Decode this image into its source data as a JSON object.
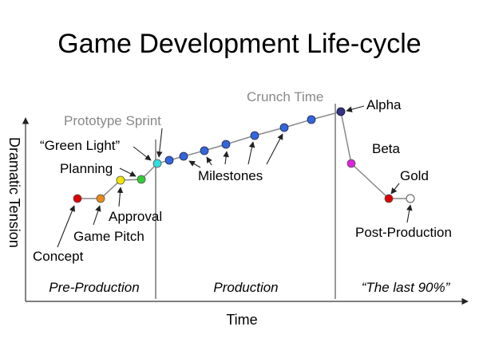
{
  "title": "Game Development Life-cycle",
  "axes": {
    "y_label": "Dramatic Tension",
    "x_label": "Time"
  },
  "phases": {
    "pre_production": "Pre-Production",
    "production": "Production",
    "last_90": "“The last 90%”"
  },
  "labels": {
    "concept": "Concept",
    "game_pitch": "Game Pitch",
    "approval": "Approval",
    "planning": "Planning",
    "green_light": "“Green Light”",
    "prototype_sprint": "Prototype Sprint",
    "milestones": "Milestones",
    "crunch_time": "Crunch Time",
    "alpha": "Alpha",
    "beta": "Beta",
    "gold": "Gold",
    "post_production": "Post-Production"
  },
  "colors": {
    "concept": "#dd0000",
    "game_pitch": "#e88a1a",
    "approval": "#f2e600",
    "planning": "#33cc33",
    "green_light": "#33dddd",
    "milestone": "#3366dd",
    "alpha": "#333388",
    "beta": "#dd22dd",
    "gold": "#dd0000",
    "post_production": "#ffffff",
    "crunch_time_text": "#888888",
    "prototype_sprint_text": "#888888"
  }
}
